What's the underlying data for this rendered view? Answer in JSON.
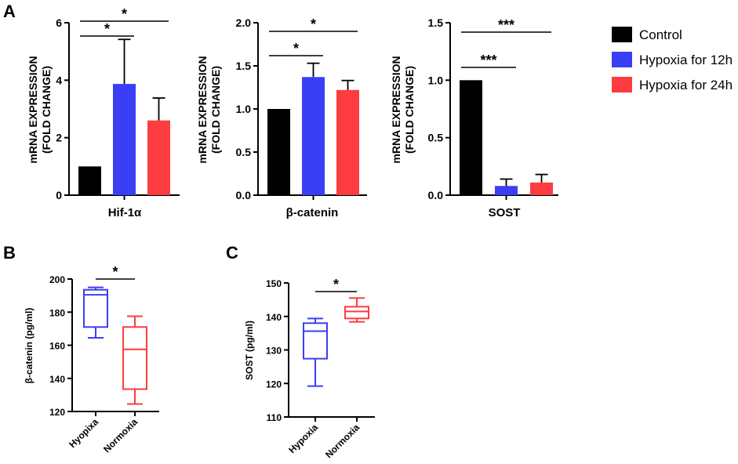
{
  "panels": {
    "a": "A",
    "b": "B",
    "c": "C"
  },
  "legend": [
    {
      "label": "Control",
      "color": "#000000"
    },
    {
      "label": "Hypoxia for 12h",
      "color": "#3a3ef5"
    },
    {
      "label": "Hypoxia for 24h",
      "color": "#fd3c40"
    }
  ],
  "chart_data": [
    {
      "type": "bar",
      "panel": "A",
      "xlabel": "Hif-1α",
      "ylabel": [
        "mRNA EXPRESSION",
        "(FOLD CHANGE)"
      ],
      "ylim": [
        0,
        6
      ],
      "yticks": [
        0,
        2,
        4,
        6
      ],
      "ytick_labels": [
        "0",
        "2",
        "4",
        "6"
      ],
      "series": [
        {
          "name": "Control",
          "value": 1.0,
          "error": 0
        },
        {
          "name": "Hypoxia for 12h",
          "value": 3.87,
          "error": 1.55
        },
        {
          "name": "Hypoxia for 24h",
          "value": 2.6,
          "error": 0.78
        }
      ],
      "significance": [
        {
          "from": 0,
          "to": 1,
          "label": "*"
        },
        {
          "from": 0,
          "to": 2,
          "label": "*"
        }
      ]
    },
    {
      "type": "bar",
      "panel": "A",
      "xlabel": "β-catenin",
      "ylabel": [
        "mRNA EXPRESSION",
        "(FOLD CHANGE)"
      ],
      "ylim": [
        0,
        2.0
      ],
      "yticks": [
        0,
        0.5,
        1.0,
        1.5,
        2.0
      ],
      "ytick_labels": [
        "0.0",
        "0.5",
        "1.0",
        "1.5",
        "2.0"
      ],
      "series": [
        {
          "name": "Control",
          "value": 1.0,
          "error": 0
        },
        {
          "name": "Hypoxia for 12h",
          "value": 1.37,
          "error": 0.16
        },
        {
          "name": "Hypoxia for 24h",
          "value": 1.22,
          "error": 0.11
        }
      ],
      "significance": [
        {
          "from": 0,
          "to": 1,
          "label": "*"
        },
        {
          "from": 0,
          "to": 2,
          "label": "*"
        }
      ]
    },
    {
      "type": "bar",
      "panel": "A",
      "xlabel": "SOST",
      "ylabel": [
        "mRNA EXPRESSION",
        "(FOLD CHANGE)"
      ],
      "ylim": [
        0,
        1.5
      ],
      "yticks": [
        0,
        0.5,
        1.0,
        1.5
      ],
      "ytick_labels": [
        "0.0",
        "0.5",
        "1.0",
        "1.5"
      ],
      "series": [
        {
          "name": "Control",
          "value": 1.0,
          "error": 0
        },
        {
          "name": "Hypoxia for 12h",
          "value": 0.08,
          "error": 0.06
        },
        {
          "name": "Hypoxia for 24h",
          "value": 0.11,
          "error": 0.07
        }
      ],
      "significance": [
        {
          "from": 0,
          "to": 1,
          "label": "***"
        },
        {
          "from": 0,
          "to": 2,
          "label": "***"
        }
      ]
    },
    {
      "type": "box",
      "panel": "B",
      "ylabel": "β-catenin (pg/ml)",
      "ylim": [
        120,
        200
      ],
      "yticks": [
        120,
        140,
        160,
        180,
        200
      ],
      "ytick_labels": [
        "120",
        "140",
        "160",
        "180",
        "200"
      ],
      "categories": [
        "Hyopixa",
        "Normoxia"
      ],
      "boxes": [
        {
          "name": "Hyopixa",
          "min": 164.5,
          "q1": 171,
          "median": 190.5,
          "q3": 193.5,
          "max": 195,
          "color": "#3a3ef5"
        },
        {
          "name": "Normoxia",
          "min": 124.5,
          "q1": 133.5,
          "median": 157.5,
          "q3": 171,
          "max": 177.5,
          "color": "#fd3c40"
        }
      ],
      "significance": [
        {
          "from": 0,
          "to": 1,
          "label": "*"
        }
      ]
    },
    {
      "type": "box",
      "panel": "C",
      "ylabel": "SOST (pg/ml)",
      "ylim": [
        110,
        150
      ],
      "yticks": [
        110,
        120,
        130,
        140,
        150
      ],
      "ytick_labels": [
        "110",
        "120",
        "130",
        "140",
        "150"
      ],
      "categories": [
        "Hypoxia",
        "Normoxia"
      ],
      "boxes": [
        {
          "name": "Hypoxia",
          "min": 119.2,
          "q1": 127.4,
          "median": 135.6,
          "q3": 138,
          "max": 139.4,
          "color": "#3a3ef5"
        },
        {
          "name": "Normoxia",
          "min": 138.4,
          "q1": 139.4,
          "median": 141.5,
          "q3": 142.9,
          "max": 145.5,
          "color": "#fd3c40"
        }
      ],
      "significance": [
        {
          "from": 0,
          "to": 1,
          "label": "*"
        }
      ]
    }
  ]
}
